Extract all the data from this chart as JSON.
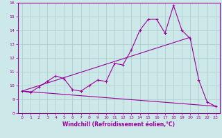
{
  "x": [
    0,
    1,
    2,
    3,
    4,
    5,
    6,
    7,
    8,
    9,
    10,
    11,
    12,
    13,
    14,
    15,
    16,
    17,
    18,
    19,
    20,
    21,
    22,
    23
  ],
  "line1": [
    9.6,
    9.5,
    9.9,
    10.3,
    10.7,
    10.5,
    9.7,
    9.6,
    10.0,
    10.4,
    10.3,
    11.6,
    11.5,
    12.6,
    14.0,
    14.8,
    14.8,
    13.8,
    15.8,
    14.0,
    13.4,
    10.4,
    8.8,
    8.5
  ],
  "line2_x": [
    0,
    20
  ],
  "line2_y": [
    9.6,
    13.5
  ],
  "line3_x": [
    0,
    23
  ],
  "line3_y": [
    9.6,
    8.5
  ],
  "color": "#990099",
  "bg_color": "#cce8e8",
  "grid_color": "#aacccc",
  "xlabel": "Windchill (Refroidissement éolien,°C)",
  "ylim": [
    8,
    16
  ],
  "xlim": [
    -0.5,
    23.5
  ],
  "yticks": [
    8,
    9,
    10,
    11,
    12,
    13,
    14,
    15,
    16
  ],
  "xticks": [
    0,
    1,
    2,
    3,
    4,
    5,
    6,
    7,
    8,
    9,
    10,
    11,
    12,
    13,
    14,
    15,
    16,
    17,
    18,
    19,
    20,
    21,
    22,
    23
  ],
  "tick_fontsize": 4.5,
  "xlabel_fontsize": 5.5,
  "linewidth": 0.8,
  "markersize": 3,
  "marker": "+"
}
